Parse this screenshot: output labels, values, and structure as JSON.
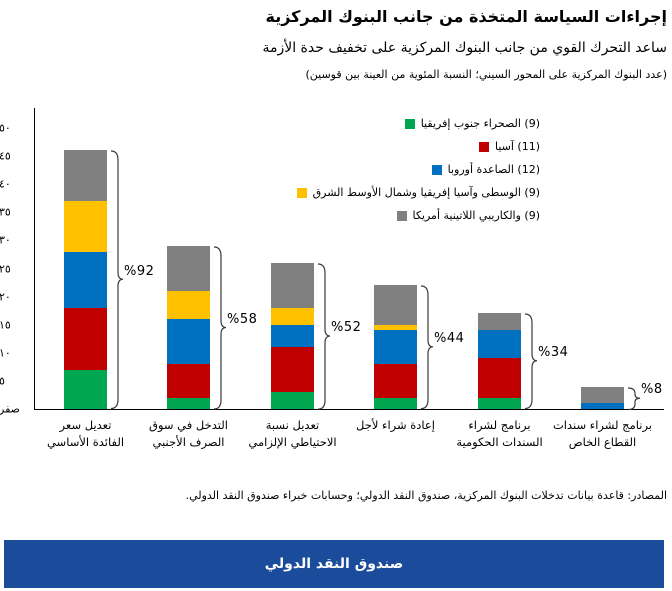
{
  "header": {
    "title": "إجراءات السياسة المتخذة من جانب البنوك المركزية",
    "subtitle": "ساعد التحرك القوي من جانب البنوك المركزية على تخفيف حدة الأزمة",
    "note": "(عدد البنوك المركزية على المحور السيني؛ النسبة المئوية من العينة بين قوسين)"
  },
  "chart_data": {
    "type": "bar",
    "stacked": true,
    "ylim": [
      0,
      50
    ],
    "grid": false,
    "legend_position": "top-right",
    "y_ticks": [
      {
        "value": 50,
        "label": "٥٠"
      },
      {
        "value": 45,
        "label": "٤٥"
      },
      {
        "value": 40,
        "label": "٤٠"
      },
      {
        "value": 35,
        "label": "٣٥"
      },
      {
        "value": 30,
        "label": "٣٠"
      },
      {
        "value": 25,
        "label": "٢٥"
      },
      {
        "value": 20,
        "label": "٢٠"
      },
      {
        "value": 15,
        "label": "١٥"
      },
      {
        "value": 10,
        "label": "١٠"
      },
      {
        "value": 5,
        "label": "٥"
      },
      {
        "value": 0,
        "label": "صفر"
      }
    ],
    "categories": [
      {
        "lines": [
          "تعديل سعر",
          "الفائدة الأساسي"
        ]
      },
      {
        "lines": [
          "التدخل في سوق",
          "الصرف الأجنبي"
        ]
      },
      {
        "lines": [
          "تعديل نسبة",
          "الاحتياطي الإلزامي"
        ]
      },
      {
        "lines": [
          "إعادة شراء لأجل"
        ]
      },
      {
        "lines": [
          "برنامج لشراء",
          "السندات الحكومية"
        ]
      },
      {
        "lines": [
          "برنامج لشراء سندات",
          "القطاع الخاص"
        ]
      }
    ],
    "series": [
      {
        "name": "إفريقيا جنوب الصحراء",
        "sample_count": 9,
        "legend_label": "إفريقيا جنوب الصحراء (9)",
        "color": "#00A650",
        "values": [
          7,
          2,
          3,
          2,
          2,
          0
        ]
      },
      {
        "name": "آسيا",
        "sample_count": 11,
        "legend_label": "آسيا (11)",
        "color": "#C00000",
        "values": [
          11,
          6,
          8,
          6,
          7,
          0
        ]
      },
      {
        "name": "أوروبا الصاعدة",
        "sample_count": 12,
        "legend_label": "أوروبا الصاعدة (12)",
        "color": "#0070C0",
        "values": [
          10,
          8,
          4,
          6,
          5,
          1
        ]
      },
      {
        "name": "الشرق الأوسط وشمال إفريقيا وآسيا الوسطى",
        "sample_count": 9,
        "legend_label": "الشرق الأوسط وشمال إفريقيا وآسيا الوسطى (9)",
        "color": "#FFC000",
        "values": [
          9,
          5,
          3,
          1,
          0,
          0
        ]
      },
      {
        "name": "أمريكا اللاتينية والكاريبي",
        "sample_count": 9,
        "legend_label": "أمريكا اللاتينية والكاريبي (9)",
        "color": "#808080",
        "values": [
          9,
          8,
          8,
          7,
          3,
          3
        ]
      }
    ],
    "totals": [
      46,
      29,
      26,
      22,
      17,
      4
    ],
    "percent_labels": [
      "%92",
      "%58",
      "%52",
      "%44",
      "%34",
      "%8"
    ]
  },
  "footer": {
    "source": "المصادر: قاعدة بيانات تدخلات البنوك المركزية، صندوق النقد الدولي؛ وحسابات خبراء صندوق النقد الدولي."
  },
  "banner": {
    "label": "صندوق النقد الدولي",
    "color": "#1B4B9B"
  }
}
